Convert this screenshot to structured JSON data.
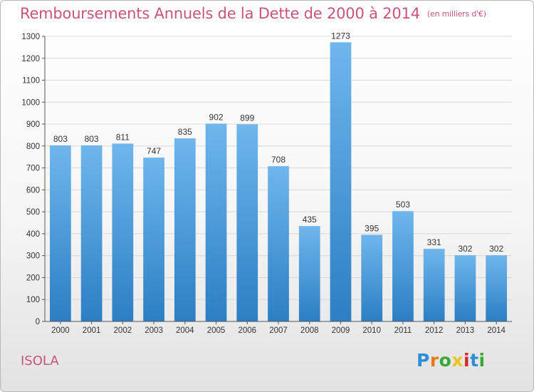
{
  "header": {
    "title": "Remboursements Annuels de la Dette de 2000 à 2014",
    "unit": "(en milliers d'€)"
  },
  "footer": {
    "city": "ISOLA",
    "logo": "Proxiti"
  },
  "colors": {
    "bar_light": "#6fb6ec",
    "bar_dark": "#2b7fc4",
    "title": "#c8547a",
    "logo_letters": [
      "#2a8fd6",
      "#e87a1e",
      "#39a935",
      "#e8c41e",
      "#d8262f",
      "#2a8fd6",
      "#39a935"
    ]
  },
  "chart_data": {
    "type": "bar",
    "title": "Remboursements Annuels de la Dette de 2000 à 2014",
    "xlabel": "",
    "ylabel": "",
    "categories": [
      "2000",
      "2001",
      "2002",
      "2003",
      "2004",
      "2005",
      "2006",
      "2007",
      "2008",
      "2009",
      "2010",
      "2011",
      "2012",
      "2013",
      "2014"
    ],
    "values": [
      803,
      803,
      811,
      747,
      835,
      902,
      899,
      708,
      435,
      1273,
      395,
      503,
      331,
      302,
      302
    ],
    "ylim": [
      0,
      1300
    ],
    "yticks": [
      0,
      100,
      200,
      300,
      400,
      500,
      600,
      700,
      800,
      900,
      1000,
      1100,
      1200,
      1300
    ],
    "grid": true,
    "data_labels": true
  }
}
